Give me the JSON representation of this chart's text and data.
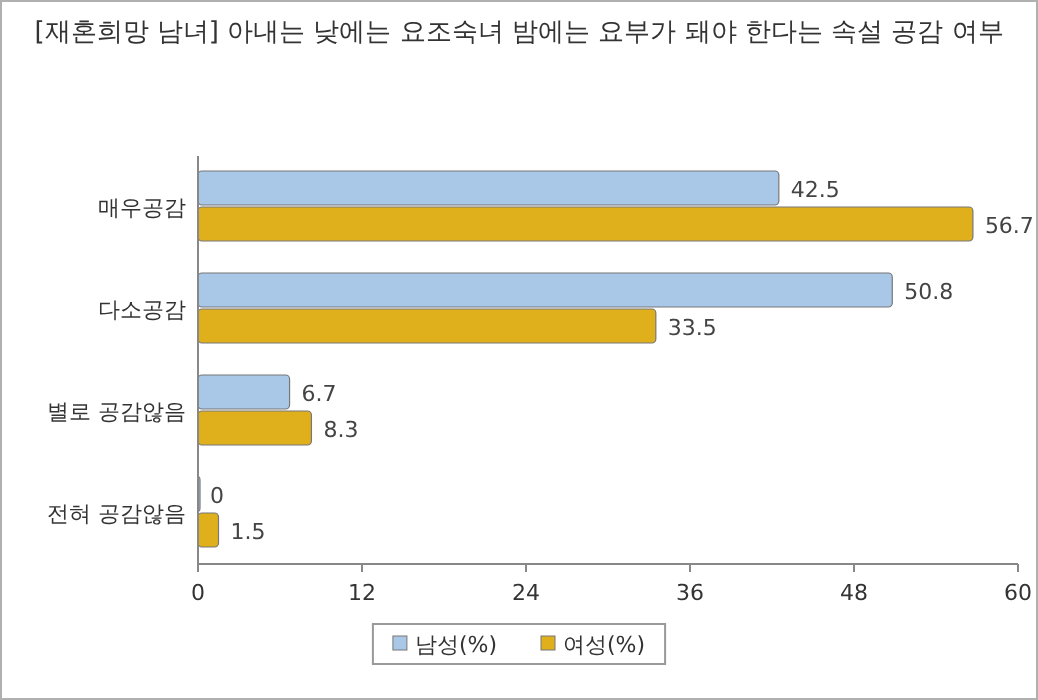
{
  "chart_data": {
    "type": "bar",
    "orientation": "horizontal",
    "title": "[재혼희망 남녀] 아내는 낮에는 요조숙녀 밤에는 요부가 돼야 한다는 속설 공감 여부",
    "categories": [
      "매우공감",
      "다소공감",
      "별로 공감않음",
      "전혀 공감않음"
    ],
    "series": [
      {
        "name": "남성(%)",
        "color": "#a9c8e8",
        "values": [
          42.5,
          50.8,
          6.7,
          0
        ]
      },
      {
        "name": "여성(%)",
        "color": "#e0b01c",
        "values": [
          56.7,
          33.5,
          8.3,
          1.5
        ]
      }
    ],
    "xlim": [
      0,
      60
    ],
    "xticks": [
      0,
      12,
      24,
      36,
      48,
      60
    ],
    "data_labels": true,
    "legend": "bottom",
    "grid": false
  }
}
